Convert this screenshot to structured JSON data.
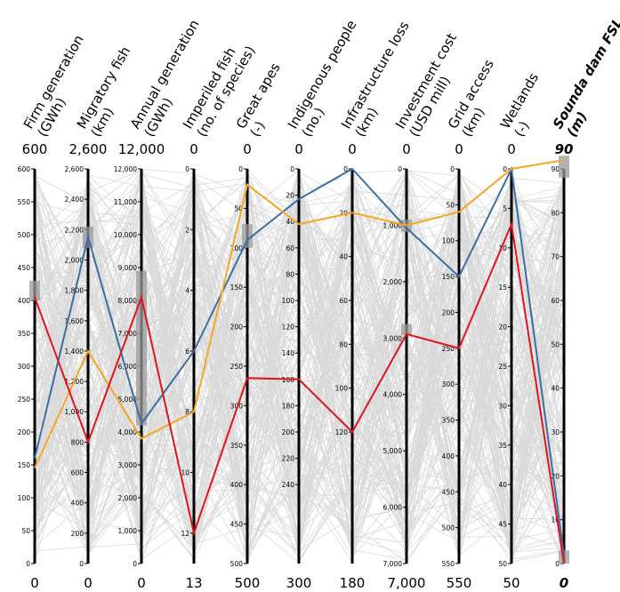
{
  "chart_data": {
    "type": "parallel-coordinates",
    "axes": [
      {
        "title": [
          "Firm generation",
          "(GWh)"
        ],
        "top": "600",
        "bottom": "0",
        "min": 0,
        "max": 600,
        "invert": false,
        "ticks": [
          0,
          50,
          100,
          150,
          200,
          250,
          300,
          350,
          400,
          450,
          500,
          550,
          600
        ],
        "tick_labels": [
          "0",
          "50",
          "100",
          "150",
          "200",
          "250",
          "300",
          "350",
          "400",
          "450",
          "500",
          "550",
          "600"
        ]
      },
      {
        "title": [
          "Migratory fish",
          "(km)"
        ],
        "top": "2,600",
        "bottom": "0",
        "min": 0,
        "max": 2600,
        "invert": false,
        "ticks": [
          0,
          200,
          400,
          600,
          800,
          1000,
          1200,
          1400,
          1600,
          1800,
          2000,
          2200,
          2400,
          2600
        ],
        "tick_labels": [
          "0",
          "200",
          "400",
          "600",
          "800",
          "1,000",
          "1,200",
          "1,400",
          "1,600",
          "1,800",
          "2,000",
          "2,200",
          "2,400",
          "2,600"
        ]
      },
      {
        "title": [
          "Annual generation",
          "(GWh)"
        ],
        "top": "12,000",
        "bottom": "0",
        "min": 0,
        "max": 12000,
        "invert": false,
        "ticks": [
          0,
          1000,
          2000,
          3000,
          4000,
          5000,
          6000,
          7000,
          8000,
          9000,
          10000,
          11000,
          12000
        ],
        "tick_labels": [
          "0",
          "1,000",
          "2,000",
          "3,000",
          "4,000",
          "5,000",
          "6,000",
          "7,000",
          "8,000",
          "9,000",
          "10,000",
          "11,000",
          "12,000"
        ]
      },
      {
        "title": [
          "Imperiled fish",
          "(no. of species)"
        ],
        "top": "0",
        "bottom": "13",
        "min": 0,
        "max": 13,
        "invert": true,
        "ticks": [
          0,
          2,
          4,
          6,
          8,
          10,
          12
        ],
        "tick_labels": [
          "0",
          "2",
          "4",
          "6",
          "8",
          "10",
          "12"
        ]
      },
      {
        "title": [
          "Great apes",
          "(-)"
        ],
        "top": "0",
        "bottom": "500",
        "min": 0,
        "max": 500,
        "invert": true,
        "ticks": [
          0,
          50,
          100,
          150,
          200,
          250,
          300,
          350,
          400,
          450,
          500
        ],
        "tick_labels": [
          "0",
          "50",
          "100",
          "150",
          "200",
          "250",
          "300",
          "350",
          "400",
          "450",
          "500"
        ]
      },
      {
        "title": [
          "Indigenous people",
          "(no.)"
        ],
        "top": "0",
        "bottom": "300",
        "min": 0,
        "max": 300,
        "invert": true,
        "ticks": [
          0,
          20,
          40,
          60,
          80,
          100,
          120,
          140,
          160,
          180,
          200,
          220,
          240
        ],
        "tick_labels": [
          "0",
          "20",
          "40",
          "60",
          "80",
          "100",
          "120",
          "140",
          "160",
          "180",
          "200",
          "220",
          "240"
        ]
      },
      {
        "title": [
          "Infrastructure loss",
          "(km)"
        ],
        "top": "0",
        "bottom": "180",
        "min": 0,
        "max": 180,
        "invert": true,
        "ticks": [
          0,
          20,
          40,
          60,
          80,
          100,
          120
        ],
        "tick_labels": [
          "0",
          "20",
          "40",
          "60",
          "80",
          "100",
          "120"
        ]
      },
      {
        "title": [
          "Investment cost",
          "(USD mill)"
        ],
        "top": "0",
        "bottom": "7,000",
        "min": 0,
        "max": 7000,
        "invert": true,
        "ticks": [
          0,
          1000,
          2000,
          3000,
          4000,
          5000,
          6000,
          7000
        ],
        "tick_labels": [
          "0",
          "1,000",
          "2,000",
          "3,000",
          "4,000",
          "5,000",
          "6,000",
          "7,000"
        ]
      },
      {
        "title": [
          "Grid access",
          "(km)"
        ],
        "top": "0",
        "bottom": "550",
        "min": 0,
        "max": 550,
        "invert": true,
        "ticks": [
          0,
          50,
          100,
          150,
          200,
          250,
          300,
          350,
          400,
          450,
          500,
          550
        ],
        "tick_labels": [
          "0",
          "50",
          "100",
          "150",
          "200",
          "250",
          "300",
          "350",
          "400",
          "450",
          "500",
          "550"
        ]
      },
      {
        "title": [
          "Wetlands",
          "(-)"
        ],
        "top": "0",
        "bottom": "50",
        "min": 0,
        "max": 50,
        "invert": true,
        "ticks": [
          0,
          5,
          10,
          15,
          20,
          25,
          30,
          35,
          40,
          45,
          50
        ],
        "tick_labels": [
          "0",
          "5",
          "10",
          "15",
          "20",
          "25",
          "30",
          "35",
          "40",
          "45",
          "50"
        ]
      },
      {
        "title": [
          "Sounda dam FSL",
          "(m)"
        ],
        "top": "90",
        "bottom": "0",
        "min": 0,
        "max": 90,
        "invert": false,
        "bold": true,
        "ticks": [
          0,
          10,
          20,
          30,
          40,
          50,
          60,
          70,
          80,
          90
        ],
        "tick_labels": [
          "0",
          "10",
          "20",
          "30",
          "40",
          "50",
          "60",
          "70",
          "80",
          "90"
        ]
      }
    ],
    "highlighted": [
      {
        "color": "#3a6ea5",
        "values": [
          160,
          2150,
          4250,
          6,
          90,
          23,
          0,
          1050,
          150,
          0,
          2
        ]
      },
      {
        "color": "#f5a623",
        "values": [
          145,
          1400,
          3800,
          8,
          20,
          42,
          20,
          1000,
          60,
          0,
          92
        ]
      },
      {
        "color": "#e0141e",
        "values": [
          405,
          800,
          8100,
          12,
          265,
          160,
          120,
          2930,
          250,
          7,
          0
        ]
      }
    ],
    "markers": [
      {
        "axis": 0,
        "range": [
          400,
          430
        ]
      },
      {
        "axis": 1,
        "range": [
          2080,
          2220
        ]
      },
      {
        "axis": 2,
        "range": [
          4200,
          8900
        ]
      },
      {
        "axis": 4,
        "range": [
          70,
          100
        ]
      },
      {
        "axis": 7,
        "range": [
          900,
          1120
        ]
      },
      {
        "axis": 7,
        "range": [
          2750,
          2950
        ]
      },
      {
        "axis": 10,
        "range": [
          88,
          93
        ]
      },
      {
        "axis": 10,
        "range": [
          0,
          3
        ]
      }
    ],
    "colors": {
      "background_lines": "#d9d9d9",
      "axis": "#000000",
      "marker": "#999999"
    }
  }
}
